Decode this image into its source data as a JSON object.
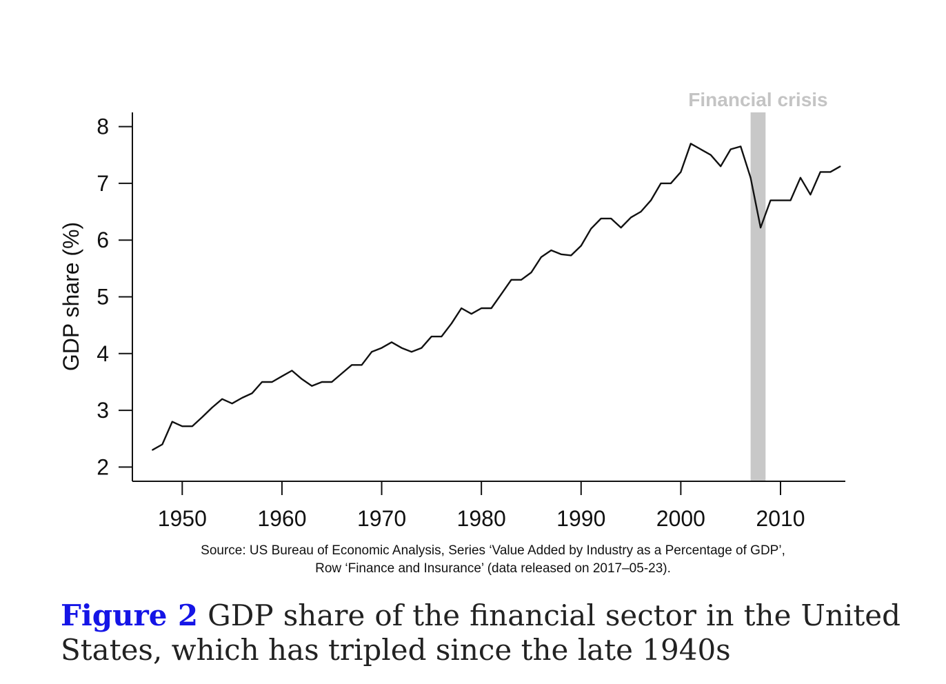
{
  "chart_data": {
    "type": "line",
    "ylabel": "GDP share (%)",
    "xlabel": "",
    "xlim": [
      1945,
      2016.5
    ],
    "ylim": [
      1.75,
      8.25
    ],
    "xticks": [
      1950,
      1960,
      1970,
      1980,
      1990,
      2000,
      2010
    ],
    "yticks": [
      2,
      3,
      4,
      5,
      6,
      7,
      8
    ],
    "grid": false,
    "annotations": [
      {
        "text": "Financial crisis",
        "x_start": 2007,
        "x_end": 2008.5,
        "color": "#c8c8c8"
      }
    ],
    "series": [
      {
        "x": [
          1947,
          1948,
          1949,
          1950,
          1951,
          1952,
          1953,
          1954,
          1955,
          1956,
          1957,
          1958,
          1959,
          1960,
          1961,
          1962,
          1963,
          1964,
          1965,
          1966,
          1967,
          1968,
          1969,
          1970,
          1971,
          1972,
          1973,
          1974,
          1975,
          1976,
          1977,
          1978,
          1979,
          1980,
          1981,
          1982,
          1983,
          1984,
          1985,
          1986,
          1987,
          1988,
          1989,
          1990,
          1991,
          1992,
          1993,
          1994,
          1995,
          1996,
          1997,
          1998,
          1999,
          2000,
          2001,
          2002,
          2003,
          2004,
          2005,
          2006,
          2007,
          2008,
          2009,
          2010,
          2011,
          2012,
          2013,
          2014,
          2015,
          2016
        ],
        "values": [
          2.3,
          2.4,
          2.8,
          2.72,
          2.72,
          2.88,
          3.05,
          3.2,
          3.12,
          3.22,
          3.3,
          3.5,
          3.5,
          3.6,
          3.7,
          3.55,
          3.43,
          3.5,
          3.5,
          3.65,
          3.8,
          3.8,
          4.03,
          4.1,
          4.2,
          4.1,
          4.03,
          4.1,
          4.3,
          4.3,
          4.53,
          4.8,
          4.7,
          4.8,
          4.8,
          5.05,
          5.3,
          5.3,
          5.43,
          5.7,
          5.82,
          5.75,
          5.73,
          5.9,
          6.2,
          6.38,
          6.38,
          6.22,
          6.4,
          6.5,
          6.7,
          7.0,
          7.0,
          7.2,
          7.7,
          7.6,
          7.5,
          7.3,
          7.6,
          7.65,
          7.1,
          6.22,
          6.7,
          6.7,
          6.7,
          7.1,
          6.8,
          7.2,
          7.2,
          7.3
        ],
        "color": "#111111"
      }
    ]
  },
  "source": {
    "line1": "Source: US Bureau of Economic Analysis, Series ‘Value Added by Industry as a Percentage of GDP’,",
    "line2": "Row ‘Finance and Insurance’ (data released on 2017–05-23)."
  },
  "caption": {
    "label": "Figure 2",
    "text": " GDP share of the financial sector in the United States, which has tripled since the late 1940s"
  }
}
